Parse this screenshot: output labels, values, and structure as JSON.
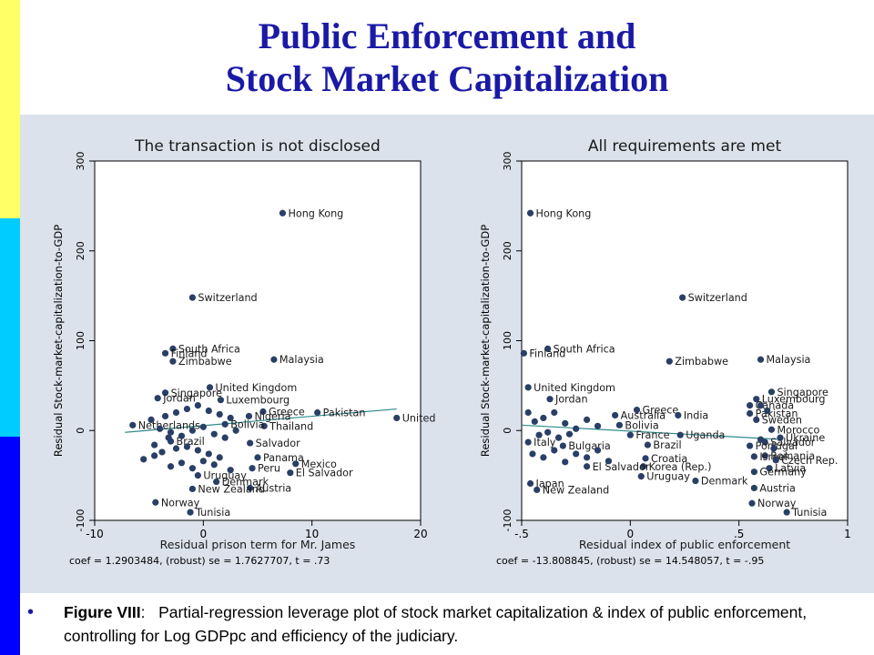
{
  "page": {
    "title_line1": "Public Enforcement and",
    "title_line2": "Stock Market Capitalization",
    "caption_label": "Figure VIII",
    "caption_colon": ":",
    "caption_text": "Partial-regression leverage plot of stock market capitalization & index of public enforcement, controlling for Log GDPpc and efficiency of the judiciary.",
    "colors": {
      "title": "#1a1aa6",
      "panel_bg": "#dbe2ec",
      "stripe_yellow": "#ffff66",
      "stripe_cyan": "#00ccff",
      "stripe_blue": "#0000ff",
      "marker": "#2a3f66",
      "fit_line": "#2e8b8b"
    }
  },
  "chart_data": [
    {
      "type": "scatter",
      "title": "The transaction is not disclosed",
      "xlabel": "Residual prison term for Mr. James",
      "ylabel": "Residual Stock-market-capitalization-to-GDP",
      "note": "coef = 1.2903484, (robust) se = 1.7627707, t = .73",
      "xlim": [
        -10,
        20
      ],
      "ylim": [
        -100,
        300
      ],
      "xticks": [
        -10,
        0,
        10,
        20
      ],
      "yticks": [
        -100,
        0,
        100,
        200,
        300
      ],
      "grid": false,
      "fit": {
        "x": [
          -7.2,
          17.8
        ],
        "y": [
          -2,
          24
        ]
      },
      "points": [
        {
          "x": 7.3,
          "y": 242,
          "label": "Hong Kong"
        },
        {
          "x": -1,
          "y": 148,
          "label": "Switzerland"
        },
        {
          "x": -2.8,
          "y": 91,
          "label": "South Africa"
        },
        {
          "x": -3.5,
          "y": 86,
          "label": "Finland"
        },
        {
          "x": -2.8,
          "y": 77,
          "label": "Zimbabwe"
        },
        {
          "x": 6.5,
          "y": 79,
          "label": "Malaysia"
        },
        {
          "x": 0.6,
          "y": 48,
          "label": "United Kingdom"
        },
        {
          "x": -3.5,
          "y": 42,
          "label": "Singapore"
        },
        {
          "x": -4.2,
          "y": 36,
          "label": "Jordan"
        },
        {
          "x": 1.6,
          "y": 34,
          "label": "Luxembourg"
        },
        {
          "x": 5.5,
          "y": 21,
          "label": "Greece"
        },
        {
          "x": 10.5,
          "y": 20,
          "label": "Pakistan"
        },
        {
          "x": 17.8,
          "y": 14,
          "label": "United"
        },
        {
          "x": 5.6,
          "y": 5,
          "label": "Thailand"
        },
        {
          "x": -6.5,
          "y": 6,
          "label": "Netherlands"
        },
        {
          "x": 4.2,
          "y": 16,
          "label": "Nigeria"
        },
        {
          "x": 2,
          "y": 7,
          "label": "Bolivia"
        },
        {
          "x": 4.3,
          "y": -14,
          "label": "Salvador"
        },
        {
          "x": -3,
          "y": -12,
          "label": "Brazil"
        },
        {
          "x": 5,
          "y": -30,
          "label": "Panama"
        },
        {
          "x": 8.5,
          "y": -37,
          "label": "Mexico"
        },
        {
          "x": 8,
          "y": -47,
          "label": "El Salvador"
        },
        {
          "x": 4.5,
          "y": -42,
          "label": "Peru"
        },
        {
          "x": -0.5,
          "y": -50,
          "label": "Uruguay"
        },
        {
          "x": 1.2,
          "y": -57,
          "label": "Denmark"
        },
        {
          "x": 4.3,
          "y": -64,
          "label": "Austria"
        },
        {
          "x": -1,
          "y": -65,
          "label": "New Zealand"
        },
        {
          "x": -4.4,
          "y": -80,
          "label": "Norway"
        },
        {
          "x": -1.2,
          "y": -91,
          "label": "Tunisia"
        },
        {
          "x": -5.5,
          "y": -32
        },
        {
          "x": -4.5,
          "y": -28
        },
        {
          "x": -3.8,
          "y": -24
        },
        {
          "x": -2.5,
          "y": -20
        },
        {
          "x": -1.5,
          "y": -18
        },
        {
          "x": -0.5,
          "y": -22
        },
        {
          "x": 0.5,
          "y": -26
        },
        {
          "x": 1.5,
          "y": -30
        },
        {
          "x": -3,
          "y": -40
        },
        {
          "x": -2,
          "y": -36
        },
        {
          "x": -1,
          "y": -42
        },
        {
          "x": 0,
          "y": -34
        },
        {
          "x": 1,
          "y": -38
        },
        {
          "x": 2.5,
          "y": -44
        },
        {
          "x": -4.8,
          "y": 12
        },
        {
          "x": -3.5,
          "y": 16
        },
        {
          "x": -2.5,
          "y": 20
        },
        {
          "x": -1.5,
          "y": 24
        },
        {
          "x": -0.5,
          "y": 28
        },
        {
          "x": 0.5,
          "y": 22
        },
        {
          "x": 1.5,
          "y": 18
        },
        {
          "x": 2.5,
          "y": 14
        },
        {
          "x": -4,
          "y": 2
        },
        {
          "x": -3,
          "y": -2
        },
        {
          "x": -2,
          "y": -6
        },
        {
          "x": -1,
          "y": 0
        },
        {
          "x": 0,
          "y": 4
        },
        {
          "x": 1,
          "y": -4
        },
        {
          "x": 2,
          "y": -8
        },
        {
          "x": 3,
          "y": 0
        },
        {
          "x": -4.5,
          "y": -16
        },
        {
          "x": -3.2,
          "y": -8
        }
      ]
    },
    {
      "type": "scatter",
      "title": "All requirements are met",
      "xlabel": "Residual index of public enforcement",
      "ylabel": "Residual Stock-market-capitalization-to-GDP",
      "note": "coef = -13.808845, (robust) se = 14.548057, t = -.95",
      "xlim": [
        -0.5,
        1
      ],
      "ylim": [
        -100,
        300
      ],
      "xticks": [
        -0.5,
        0,
        0.5,
        1
      ],
      "xtick_labels": [
        "-.5",
        "0",
        ".5",
        "1"
      ],
      "yticks": [
        -100,
        0,
        100,
        200,
        300
      ],
      "grid": false,
      "fit": {
        "x": [
          -0.5,
          0.7
        ],
        "y": [
          6,
          -10
        ]
      },
      "points": [
        {
          "x": -0.46,
          "y": 242,
          "label": "Hong Kong"
        },
        {
          "x": 0.24,
          "y": 148,
          "label": "Switzerland"
        },
        {
          "x": -0.38,
          "y": 91,
          "label": "South Africa"
        },
        {
          "x": -0.49,
          "y": 86,
          "label": "Finland"
        },
        {
          "x": 0.18,
          "y": 77,
          "label": "Zimbabwe"
        },
        {
          "x": 0.6,
          "y": 79,
          "label": "Malaysia"
        },
        {
          "x": -0.47,
          "y": 48,
          "label": "United Kingdom"
        },
        {
          "x": -0.37,
          "y": 35,
          "label": "Jordan"
        },
        {
          "x": 0.65,
          "y": 43,
          "label": "Singapore"
        },
        {
          "x": 0.58,
          "y": 35,
          "label": "Luxembourg"
        },
        {
          "x": 0.55,
          "y": 28,
          "label": "Canada"
        },
        {
          "x": 0.03,
          "y": 23,
          "label": "Greece"
        },
        {
          "x": 0.22,
          "y": 17,
          "label": "India"
        },
        {
          "x": -0.07,
          "y": 17,
          "label": "Australia"
        },
        {
          "x": 0.55,
          "y": 19,
          "label": "Pakistan"
        },
        {
          "x": 0.58,
          "y": 12,
          "label": "Sweden"
        },
        {
          "x": -0.05,
          "y": 6,
          "label": "Bolivia"
        },
        {
          "x": 0.65,
          "y": 1,
          "label": "Morocco"
        },
        {
          "x": 0.69,
          "y": -8,
          "label": "Ukraine"
        },
        {
          "x": 0.62,
          "y": -13,
          "label": "Salvador"
        },
        {
          "x": 0.55,
          "y": -17,
          "label": "Portugal"
        },
        {
          "x": 0.23,
          "y": -5,
          "label": "Uganda"
        },
        {
          "x": 0.0,
          "y": -5,
          "label": "France"
        },
        {
          "x": 0.08,
          "y": -16,
          "label": "Brazil"
        },
        {
          "x": -0.31,
          "y": -17,
          "label": "Bulgaria"
        },
        {
          "x": -0.47,
          "y": -13,
          "label": "Italy"
        },
        {
          "x": 0.62,
          "y": -28,
          "label": "Romania"
        },
        {
          "x": 0.57,
          "y": -29,
          "label": "Israel"
        },
        {
          "x": 0.67,
          "y": -33,
          "label": "Czech Rep."
        },
        {
          "x": 0.64,
          "y": -42,
          "label": "Latvia"
        },
        {
          "x": 0.57,
          "y": -46,
          "label": "Germany"
        },
        {
          "x": 0.07,
          "y": -31,
          "label": "Croatia"
        },
        {
          "x": 0.06,
          "y": -40,
          "label": "Korea (Rep.)"
        },
        {
          "x": -0.2,
          "y": -40,
          "label": "El Salvador"
        },
        {
          "x": 0.05,
          "y": -51,
          "label": "Uruguay"
        },
        {
          "x": 0.3,
          "y": -56,
          "label": "Denmark"
        },
        {
          "x": 0.57,
          "y": -64,
          "label": "Austria"
        },
        {
          "x": -0.46,
          "y": -59,
          "label": "Japan"
        },
        {
          "x": -0.43,
          "y": -66,
          "label": "New Zealand"
        },
        {
          "x": 0.56,
          "y": -81,
          "label": "Norway"
        },
        {
          "x": 0.72,
          "y": -91,
          "label": "Tunisia"
        },
        {
          "x": -0.47,
          "y": 20
        },
        {
          "x": -0.44,
          "y": 10
        },
        {
          "x": -0.4,
          "y": 14
        },
        {
          "x": -0.35,
          "y": 20
        },
        {
          "x": -0.3,
          "y": 8
        },
        {
          "x": -0.25,
          "y": 2
        },
        {
          "x": -0.2,
          "y": 12
        },
        {
          "x": -0.15,
          "y": 5
        },
        {
          "x": -0.45,
          "y": -26
        },
        {
          "x": -0.4,
          "y": -30
        },
        {
          "x": -0.35,
          "y": -22
        },
        {
          "x": -0.3,
          "y": -35
        },
        {
          "x": -0.25,
          "y": -26
        },
        {
          "x": -0.2,
          "y": -30
        },
        {
          "x": -0.15,
          "y": -22
        },
        {
          "x": -0.1,
          "y": -34
        },
        {
          "x": -0.42,
          "y": -5
        },
        {
          "x": -0.38,
          "y": -2
        },
        {
          "x": -0.33,
          "y": -8
        },
        {
          "x": -0.28,
          "y": -4
        },
        {
          "x": 0.6,
          "y": 28
        },
        {
          "x": 0.63,
          "y": 22
        },
        {
          "x": 0.66,
          "y": -20
        },
        {
          "x": 0.6,
          "y": -10
        }
      ]
    }
  ]
}
